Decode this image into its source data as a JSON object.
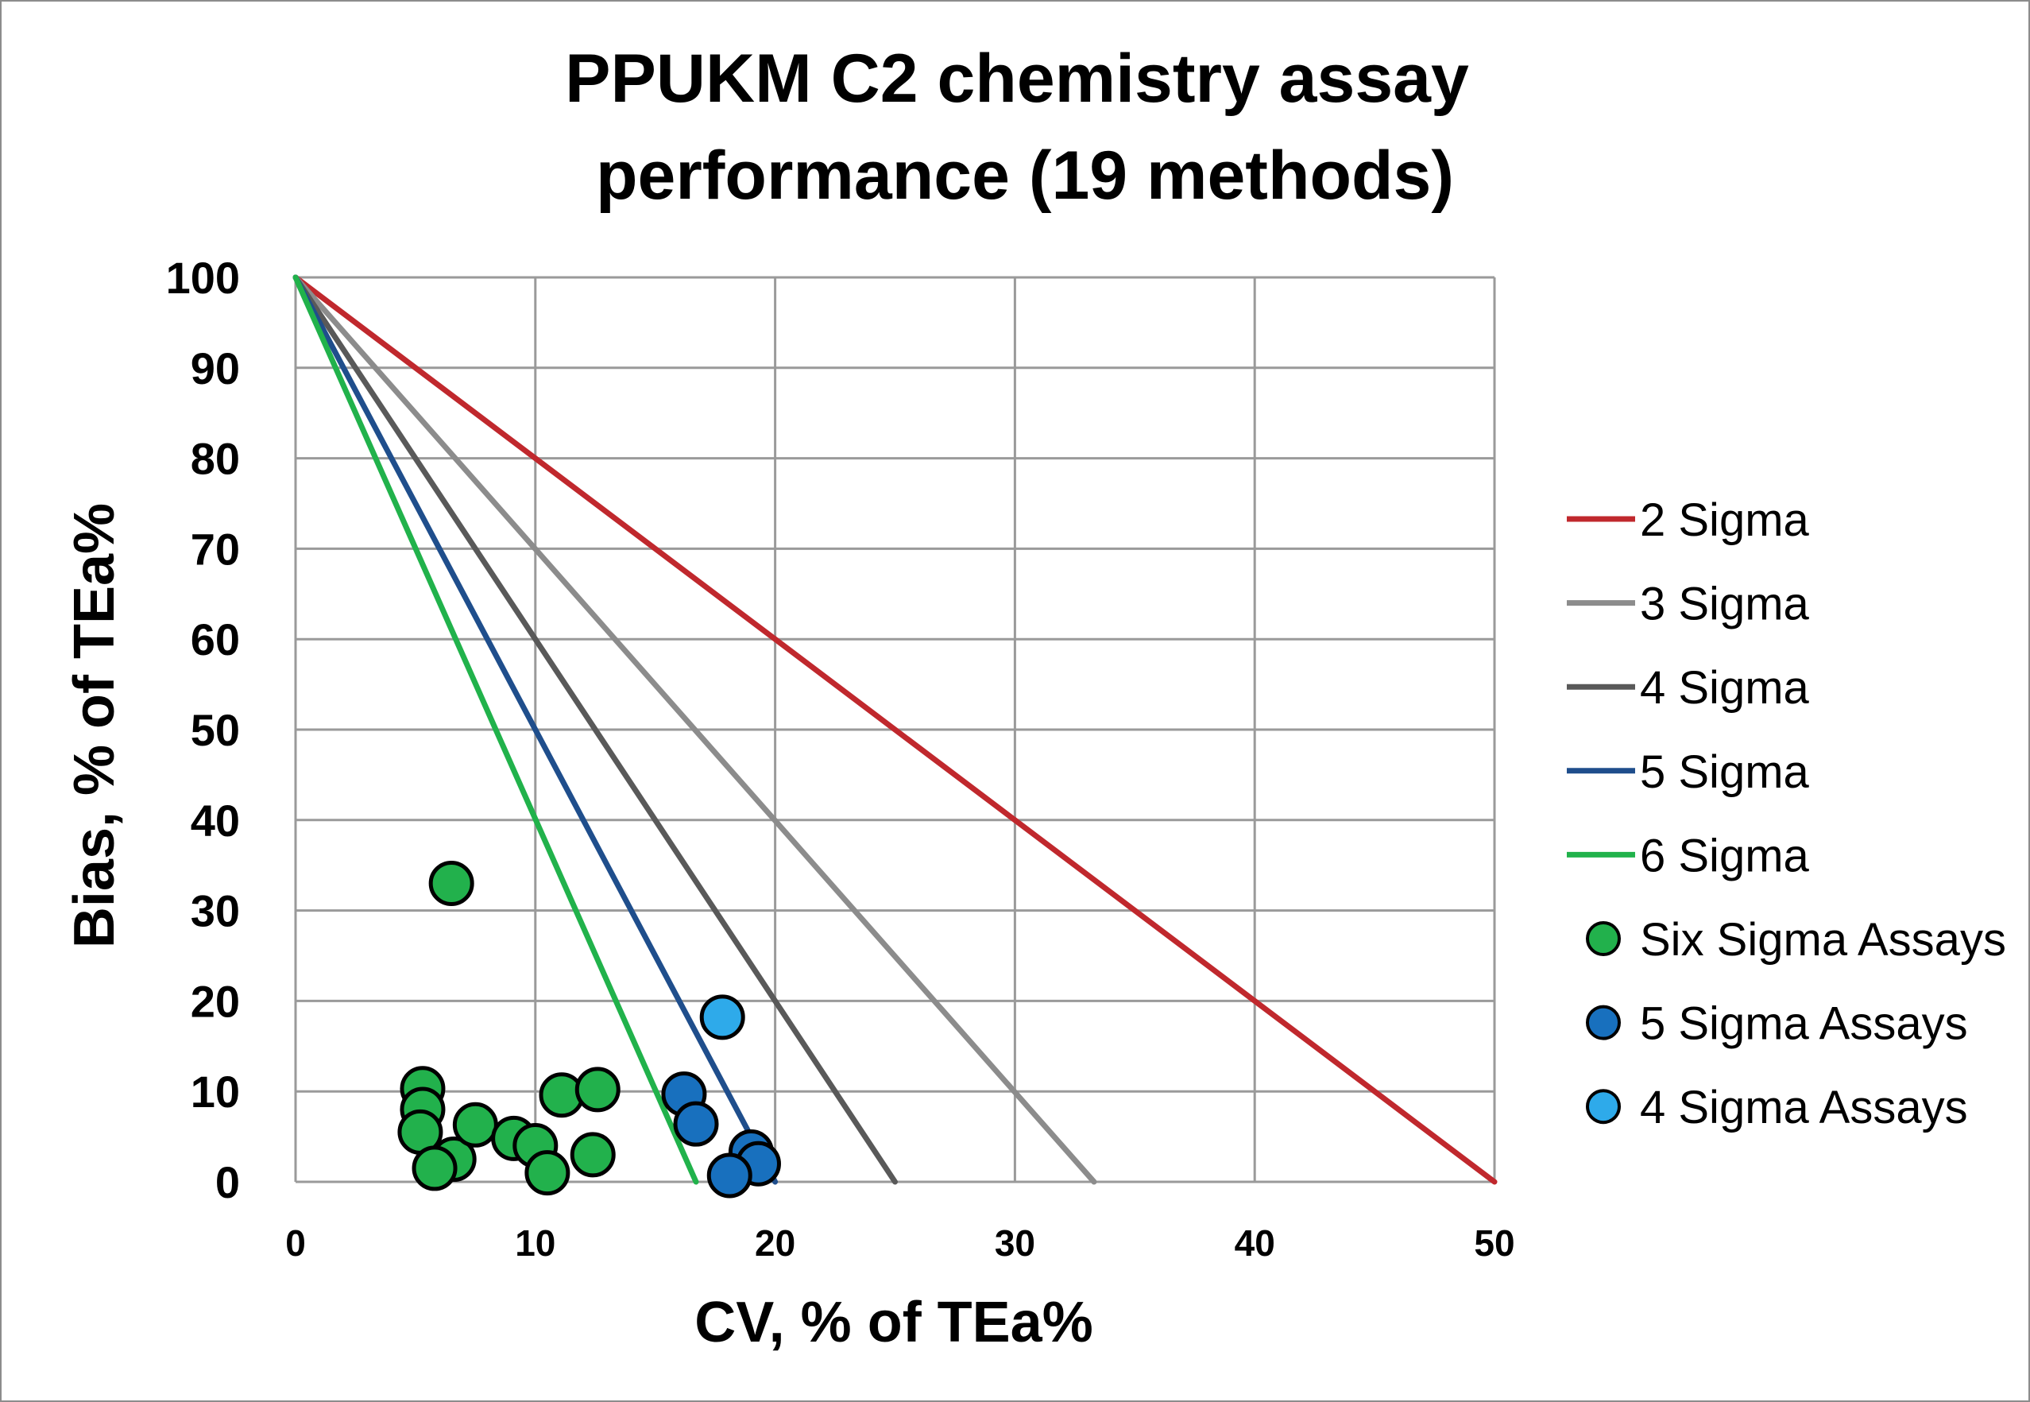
{
  "chart_data": {
    "type": "scatter",
    "title": [
      "PPUKM C2 chemistry assay",
      "performance (19 methods)"
    ],
    "xlabel": "CV, % of TEa%",
    "ylabel": "Bias, % of TEa%",
    "xlim": [
      0,
      50
    ],
    "ylim": [
      0,
      100
    ],
    "xticks": [
      0,
      10,
      20,
      30,
      40,
      50
    ],
    "yticks": [
      0,
      10,
      20,
      30,
      40,
      50,
      60,
      70,
      80,
      90,
      100
    ],
    "grid": true,
    "legend_position": "right",
    "sigma_lines": [
      {
        "name": "2 Sigma",
        "color": "#c0282d",
        "points": [
          [
            0,
            100
          ],
          [
            50,
            0
          ]
        ]
      },
      {
        "name": "3 Sigma",
        "color": "#8c8c8c",
        "points": [
          [
            0,
            100
          ],
          [
            33.3,
            0
          ]
        ]
      },
      {
        "name": "4 Sigma",
        "color": "#595959",
        "points": [
          [
            0,
            100
          ],
          [
            25,
            0
          ]
        ]
      },
      {
        "name": "5 Sigma",
        "color": "#1f4e8c",
        "points": [
          [
            0,
            100
          ],
          [
            20,
            0
          ]
        ]
      },
      {
        "name": "6 Sigma",
        "color": "#21b24b",
        "points": [
          [
            0,
            100
          ],
          [
            16.7,
            0
          ]
        ]
      }
    ],
    "series": [
      {
        "name": "Six Sigma Assays",
        "color": "#22b14c",
        "points": [
          [
            6.5,
            33
          ],
          [
            5.3,
            10.3
          ],
          [
            5.3,
            8
          ],
          [
            5.2,
            5.5
          ],
          [
            6.6,
            2.5
          ],
          [
            5.8,
            1.5
          ],
          [
            7.5,
            6.3
          ],
          [
            9.1,
            4.8
          ],
          [
            10.0,
            4
          ],
          [
            10.5,
            1
          ],
          [
            11.1,
            9.6
          ],
          [
            12.6,
            10.2
          ],
          [
            12.4,
            3
          ]
        ]
      },
      {
        "name": "5 Sigma Assays",
        "color": "#1870be",
        "points": [
          [
            16.2,
            9.7
          ],
          [
            16.7,
            6.4
          ],
          [
            19.0,
            3.3
          ],
          [
            19.3,
            2
          ],
          [
            18.1,
            0.7
          ]
        ]
      },
      {
        "name": "4 Sigma Assays",
        "color": "#2eaaea",
        "points": [
          [
            17.8,
            18.2
          ]
        ]
      }
    ]
  }
}
